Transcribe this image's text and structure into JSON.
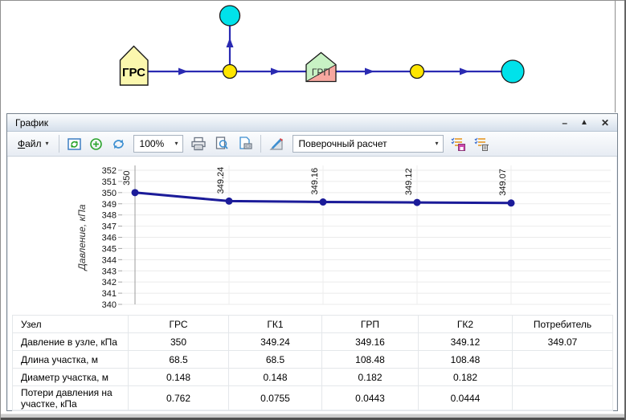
{
  "map": {
    "nodes": [
      {
        "id": "grs",
        "label": "ГРС",
        "type": "source-pentagon"
      },
      {
        "id": "branch-consumer",
        "type": "consumer-circle"
      },
      {
        "id": "gk1",
        "type": "junction-circle"
      },
      {
        "id": "grp",
        "label": "ГРП",
        "type": "regulator-pentagon"
      },
      {
        "id": "gk2",
        "type": "junction-circle"
      },
      {
        "id": "consumer",
        "type": "consumer-circle"
      }
    ]
  },
  "window": {
    "title": "График",
    "controls": {
      "minimize": "–",
      "dock": "▲",
      "close": "✕"
    },
    "toolbar": {
      "file_accel": "Ф",
      "file_rest": "айл",
      "file_caret": "▾",
      "zoom_value": "100%",
      "zoom_caret": "▾",
      "calc_mode": "Поверочный расчет",
      "calc_caret": "▾",
      "icons": {
        "refresh_view": "window-refresh-icon",
        "zoom_all": "green-plus-circle-icon",
        "reload": "blue-circular-arrows-icon",
        "print": "printer-icon",
        "print_preview": "page-magnifier-icon",
        "page_setup": "page-printer-icon",
        "chart_settings": "triangle-pencil-icon",
        "save_list": "checklist-save-icon",
        "delete_list": "checklist-delete-icon"
      }
    },
    "table": {
      "rows": [
        {
          "label": "Узел",
          "values": [
            "ГРС",
            "ГК1",
            "ГРП",
            "ГК2",
            "Потребитель"
          ]
        },
        {
          "label": "Давление в узле, кПа",
          "values": [
            "350",
            "349.24",
            "349.16",
            "349.12",
            "349.07"
          ]
        },
        {
          "label": "Длина участка, м",
          "values": [
            "68.5",
            "68.5",
            "108.48",
            "108.48",
            ""
          ]
        },
        {
          "label": "Диаметр участка, м",
          "values": [
            "0.148",
            "0.148",
            "0.182",
            "0.182",
            ""
          ]
        },
        {
          "label": "Потери давления на участке, кПа",
          "values": [
            "0.762",
            "0.0755",
            "0.0443",
            "0.0444",
            ""
          ]
        }
      ]
    }
  },
  "chart_data": {
    "type": "line",
    "title": "",
    "categories": [
      "ГРС",
      "ГК1",
      "ГРП",
      "ГК2",
      "Потребитель"
    ],
    "values": [
      350,
      349.24,
      349.16,
      349.12,
      349.07
    ],
    "point_labels": [
      "350",
      "349.24",
      "349.16",
      "349.12",
      "349.07"
    ],
    "xlabel": "",
    "ylabel": "Давление, кПа",
    "ylim": [
      340,
      352
    ],
    "ytick_step": 1,
    "grid": true,
    "legend": "none",
    "line_color": "#1b1b99"
  },
  "colors": {
    "edge_blue": "#2a2ab2",
    "node_yellow": "#ffe600",
    "node_cyan": "#00e2ea",
    "grs_fill": "#fbf7ae",
    "grp_green": "#c8f2c4",
    "grp_pink": "#f7a8a0",
    "chart_line": "#1b1b99"
  }
}
